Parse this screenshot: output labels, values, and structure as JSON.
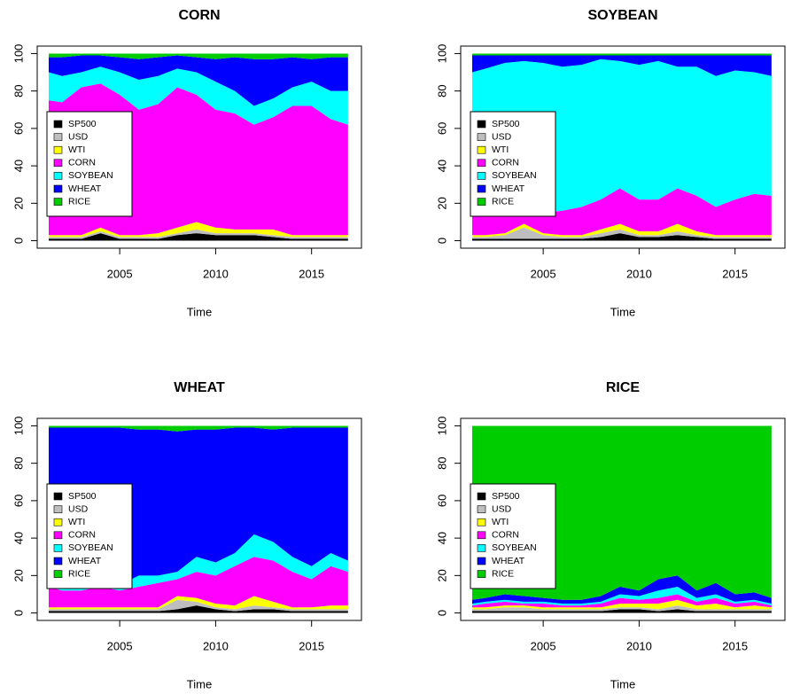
{
  "chart_data": [
    {
      "type": "stacked-area",
      "title": "CORN",
      "xlabel": "Time",
      "legend": "left",
      "x": [
        2001.3,
        2002,
        2003,
        2004,
        2005,
        2006,
        2007,
        2008,
        2009,
        2010,
        2011,
        2012,
        2013,
        2014,
        2015,
        2016,
        2016.9
      ],
      "xlim": [
        2000.7,
        2017.6
      ],
      "ylim": [
        -4,
        104
      ],
      "xticks": [
        2005,
        2010,
        2015
      ],
      "yticks": [
        0,
        20,
        40,
        60,
        80,
        100
      ],
      "series": [
        {
          "name": "SP500",
          "color": "#000000",
          "values": [
            1,
            1,
            1,
            4,
            1,
            1,
            1,
            3,
            4,
            3,
            3,
            3,
            2,
            1,
            1,
            1,
            1
          ]
        },
        {
          "name": "USD",
          "color": "#bebebe",
          "values": [
            1,
            1,
            1,
            1,
            1,
            1,
            1,
            1,
            2,
            1,
            1,
            1,
            1,
            1,
            1,
            1,
            1
          ]
        },
        {
          "name": "WTI",
          "color": "#ffff00",
          "values": [
            1,
            1,
            1,
            2,
            1,
            1,
            2,
            3,
            4,
            3,
            2,
            2,
            3,
            1,
            1,
            1,
            1
          ]
        },
        {
          "name": "CORN",
          "color": "#ff00ff",
          "values": [
            72,
            71,
            79,
            77,
            75,
            67,
            69,
            75,
            68,
            63,
            62,
            56,
            60,
            69,
            69,
            62,
            59
          ]
        },
        {
          "name": "SOYBEAN",
          "color": "#00ffff",
          "values": [
            15,
            14,
            8,
            9,
            12,
            16,
            15,
            10,
            12,
            15,
            12,
            10,
            10,
            10,
            13,
            15,
            18
          ]
        },
        {
          "name": "WHEAT",
          "color": "#0000ff",
          "values": [
            8,
            10,
            9,
            6,
            8,
            11,
            10,
            7,
            8,
            12,
            18,
            25,
            21,
            16,
            12,
            18,
            18
          ]
        },
        {
          "name": "RICE",
          "color": "#00cd00",
          "values": [
            2,
            2,
            1,
            1,
            2,
            3,
            2,
            1,
            2,
            3,
            2,
            3,
            3,
            2,
            3,
            2,
            2
          ]
        }
      ]
    },
    {
      "type": "stacked-area",
      "title": "SOYBEAN",
      "xlabel": "Time",
      "legend": "left",
      "x": [
        2001.3,
        2002,
        2003,
        2004,
        2005,
        2006,
        2007,
        2008,
        2009,
        2010,
        2011,
        2012,
        2013,
        2014,
        2015,
        2016,
        2016.9
      ],
      "xlim": [
        2000.7,
        2017.6
      ],
      "ylim": [
        -4,
        104
      ],
      "xticks": [
        2005,
        2010,
        2015
      ],
      "yticks": [
        0,
        20,
        40,
        60,
        80,
        100
      ],
      "series": [
        {
          "name": "SP500",
          "color": "#000000",
          "values": [
            1,
            1,
            1,
            1,
            1,
            1,
            1,
            2,
            4,
            2,
            2,
            3,
            2,
            1,
            1,
            1,
            1
          ]
        },
        {
          "name": "USD",
          "color": "#bebebe",
          "values": [
            1,
            1,
            2,
            6,
            2,
            1,
            1,
            2,
            2,
            1,
            1,
            2,
            1,
            1,
            1,
            1,
            1
          ]
        },
        {
          "name": "WTI",
          "color": "#ffff00",
          "values": [
            1,
            1,
            1,
            2,
            1,
            1,
            1,
            2,
            3,
            2,
            2,
            4,
            2,
            1,
            1,
            1,
            1
          ]
        },
        {
          "name": "CORN",
          "color": "#ff00ff",
          "values": [
            11,
            13,
            12,
            9,
            11,
            13,
            15,
            16,
            19,
            17,
            17,
            19,
            19,
            15,
            19,
            22,
            21
          ]
        },
        {
          "name": "SOYBEAN",
          "color": "#00ffff",
          "values": [
            76,
            76,
            79,
            78,
            80,
            77,
            76,
            75,
            68,
            72,
            74,
            65,
            69,
            70,
            69,
            65,
            64
          ]
        },
        {
          "name": "WHEAT",
          "color": "#0000ff",
          "values": [
            9,
            7,
            4,
            3,
            4,
            6,
            5,
            2,
            3,
            5,
            3,
            6,
            6,
            11,
            8,
            9,
            11
          ]
        },
        {
          "name": "RICE",
          "color": "#00cd00",
          "values": [
            1,
            1,
            1,
            1,
            1,
            1,
            1,
            1,
            1,
            1,
            1,
            1,
            1,
            1,
            1,
            1,
            1
          ]
        }
      ]
    },
    {
      "type": "stacked-area",
      "title": "WHEAT",
      "xlabel": "Time",
      "legend": "left",
      "x": [
        2001.3,
        2002,
        2003,
        2004,
        2005,
        2006,
        2007,
        2008,
        2009,
        2010,
        2011,
        2012,
        2013,
        2014,
        2015,
        2016,
        2016.9
      ],
      "xlim": [
        2000.7,
        2017.6
      ],
      "ylim": [
        -4,
        104
      ],
      "xticks": [
        2005,
        2010,
        2015
      ],
      "yticks": [
        0,
        20,
        40,
        60,
        80,
        100
      ],
      "series": [
        {
          "name": "SP500",
          "color": "#000000",
          "values": [
            1,
            1,
            1,
            1,
            1,
            1,
            1,
            2,
            4,
            2,
            1,
            2,
            2,
            1,
            1,
            1,
            1
          ]
        },
        {
          "name": "USD",
          "color": "#bebebe",
          "values": [
            1,
            1,
            1,
            1,
            1,
            1,
            1,
            5,
            2,
            1,
            1,
            2,
            1,
            1,
            1,
            1,
            1
          ]
        },
        {
          "name": "WTI",
          "color": "#ffff00",
          "values": [
            1,
            1,
            1,
            1,
            1,
            1,
            1,
            2,
            2,
            2,
            2,
            5,
            3,
            1,
            1,
            2,
            2
          ]
        },
        {
          "name": "CORN",
          "color": "#ff00ff",
          "values": [
            11,
            9,
            9,
            11,
            9,
            11,
            13,
            9,
            14,
            15,
            21,
            21,
            22,
            19,
            15,
            21,
            18
          ]
        },
        {
          "name": "SOYBEAN",
          "color": "#00ffff",
          "values": [
            8,
            6,
            5,
            4,
            3,
            6,
            4,
            4,
            8,
            7,
            7,
            12,
            10,
            8,
            7,
            7,
            6
          ]
        },
        {
          "name": "WHEAT",
          "color": "#0000ff",
          "values": [
            77,
            81,
            82,
            81,
            84,
            78,
            78,
            75,
            68,
            71,
            67,
            57,
            60,
            69,
            74,
            67,
            71
          ]
        },
        {
          "name": "RICE",
          "color": "#00cd00",
          "values": [
            1,
            1,
            1,
            1,
            1,
            2,
            2,
            3,
            2,
            2,
            1,
            1,
            2,
            1,
            1,
            1,
            1
          ]
        }
      ]
    },
    {
      "type": "stacked-area",
      "title": "RICE",
      "xlabel": "Time",
      "legend": "left",
      "x": [
        2001.3,
        2002,
        2003,
        2004,
        2005,
        2006,
        2007,
        2008,
        2009,
        2010,
        2011,
        2012,
        2013,
        2014,
        2015,
        2016,
        2016.9
      ],
      "xlim": [
        2000.7,
        2017.6
      ],
      "ylim": [
        -4,
        104
      ],
      "xticks": [
        2005,
        2010,
        2015
      ],
      "yticks": [
        0,
        20,
        40,
        60,
        80,
        100
      ],
      "series": [
        {
          "name": "SP500",
          "color": "#000000",
          "values": [
            1,
            1,
            1,
            1,
            1,
            1,
            1,
            1,
            2,
            2,
            1,
            2,
            1,
            1,
            1,
            1,
            1
          ]
        },
        {
          "name": "USD",
          "color": "#bebebe",
          "values": [
            1,
            1,
            2,
            2,
            1,
            1,
            1,
            1,
            1,
            1,
            1,
            2,
            1,
            1,
            1,
            1,
            1
          ]
        },
        {
          "name": "WTI",
          "color": "#ffff00",
          "values": [
            1,
            1,
            1,
            1,
            1,
            1,
            1,
            1,
            2,
            2,
            3,
            3,
            2,
            3,
            1,
            2,
            1
          ]
        },
        {
          "name": "CORN",
          "color": "#ff00ff",
          "values": [
            1,
            2,
            2,
            1,
            2,
            1,
            1,
            2,
            3,
            2,
            3,
            3,
            2,
            3,
            2,
            2,
            1
          ]
        },
        {
          "name": "SOYBEAN",
          "color": "#00ffff",
          "values": [
            1,
            1,
            1,
            1,
            1,
            1,
            1,
            1,
            2,
            2,
            4,
            4,
            2,
            2,
            1,
            1,
            1
          ]
        },
        {
          "name": "WHEAT",
          "color": "#0000ff",
          "values": [
            2,
            2,
            3,
            3,
            2,
            2,
            2,
            3,
            4,
            3,
            6,
            6,
            4,
            6,
            4,
            4,
            3
          ]
        },
        {
          "name": "RICE",
          "color": "#00cd00",
          "values": [
            93,
            92,
            90,
            91,
            92,
            93,
            93,
            91,
            86,
            88,
            82,
            80,
            88,
            84,
            90,
            89,
            92
          ]
        }
      ]
    }
  ]
}
